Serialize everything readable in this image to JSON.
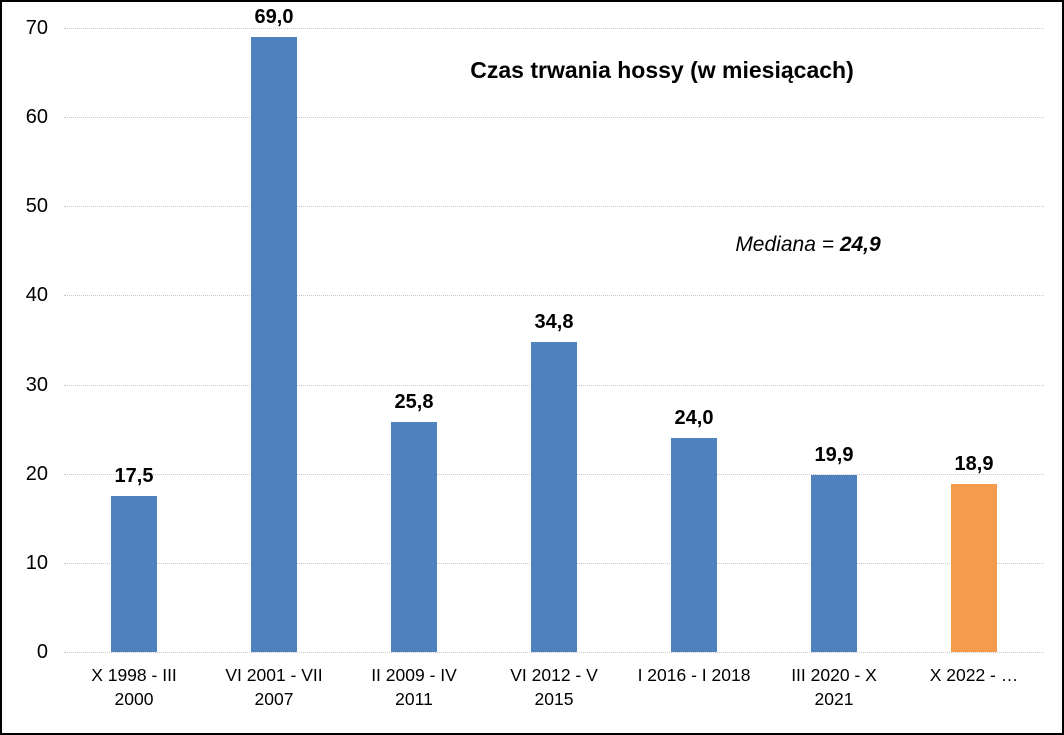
{
  "chart_data": {
    "type": "bar",
    "title": "Czas trwania hossy (w miesiącach)",
    "annotation": {
      "prefix": "Mediana = ",
      "value": "24,9"
    },
    "categories": [
      [
        "X 1998 - III",
        "2000"
      ],
      [
        "VI 2001 - VII",
        "2007"
      ],
      [
        "II 2009 - IV",
        "2011"
      ],
      [
        "VI 2012 - V",
        "2015"
      ],
      [
        "I 2016 - I 2018"
      ],
      [
        "III 2020 - X",
        "2021"
      ],
      [
        "X 2022 - …"
      ]
    ],
    "values": [
      17.5,
      69.0,
      25.8,
      34.8,
      24.0,
      19.9,
      18.9
    ],
    "value_labels": [
      "17,5",
      "69,0",
      "25,8",
      "34,8",
      "24,0",
      "19,9",
      "18,9"
    ],
    "bar_colors": [
      "#4E81BD",
      "#4E81BD",
      "#4E81BD",
      "#4E81BD",
      "#4E81BD",
      "#4E81BD",
      "#F59B4C"
    ],
    "colors": {
      "bar_blue": "#4E81BD",
      "bar_orange": "#F59B4C",
      "gridline": "#c9c9c9",
      "text": "#000000",
      "background": "#ffffff"
    },
    "xlabel": "",
    "ylabel": "",
    "ylim": [
      0,
      70
    ],
    "yticks": [
      0,
      10,
      20,
      30,
      40,
      50,
      60,
      70
    ],
    "grid": true,
    "legend": "none"
  }
}
